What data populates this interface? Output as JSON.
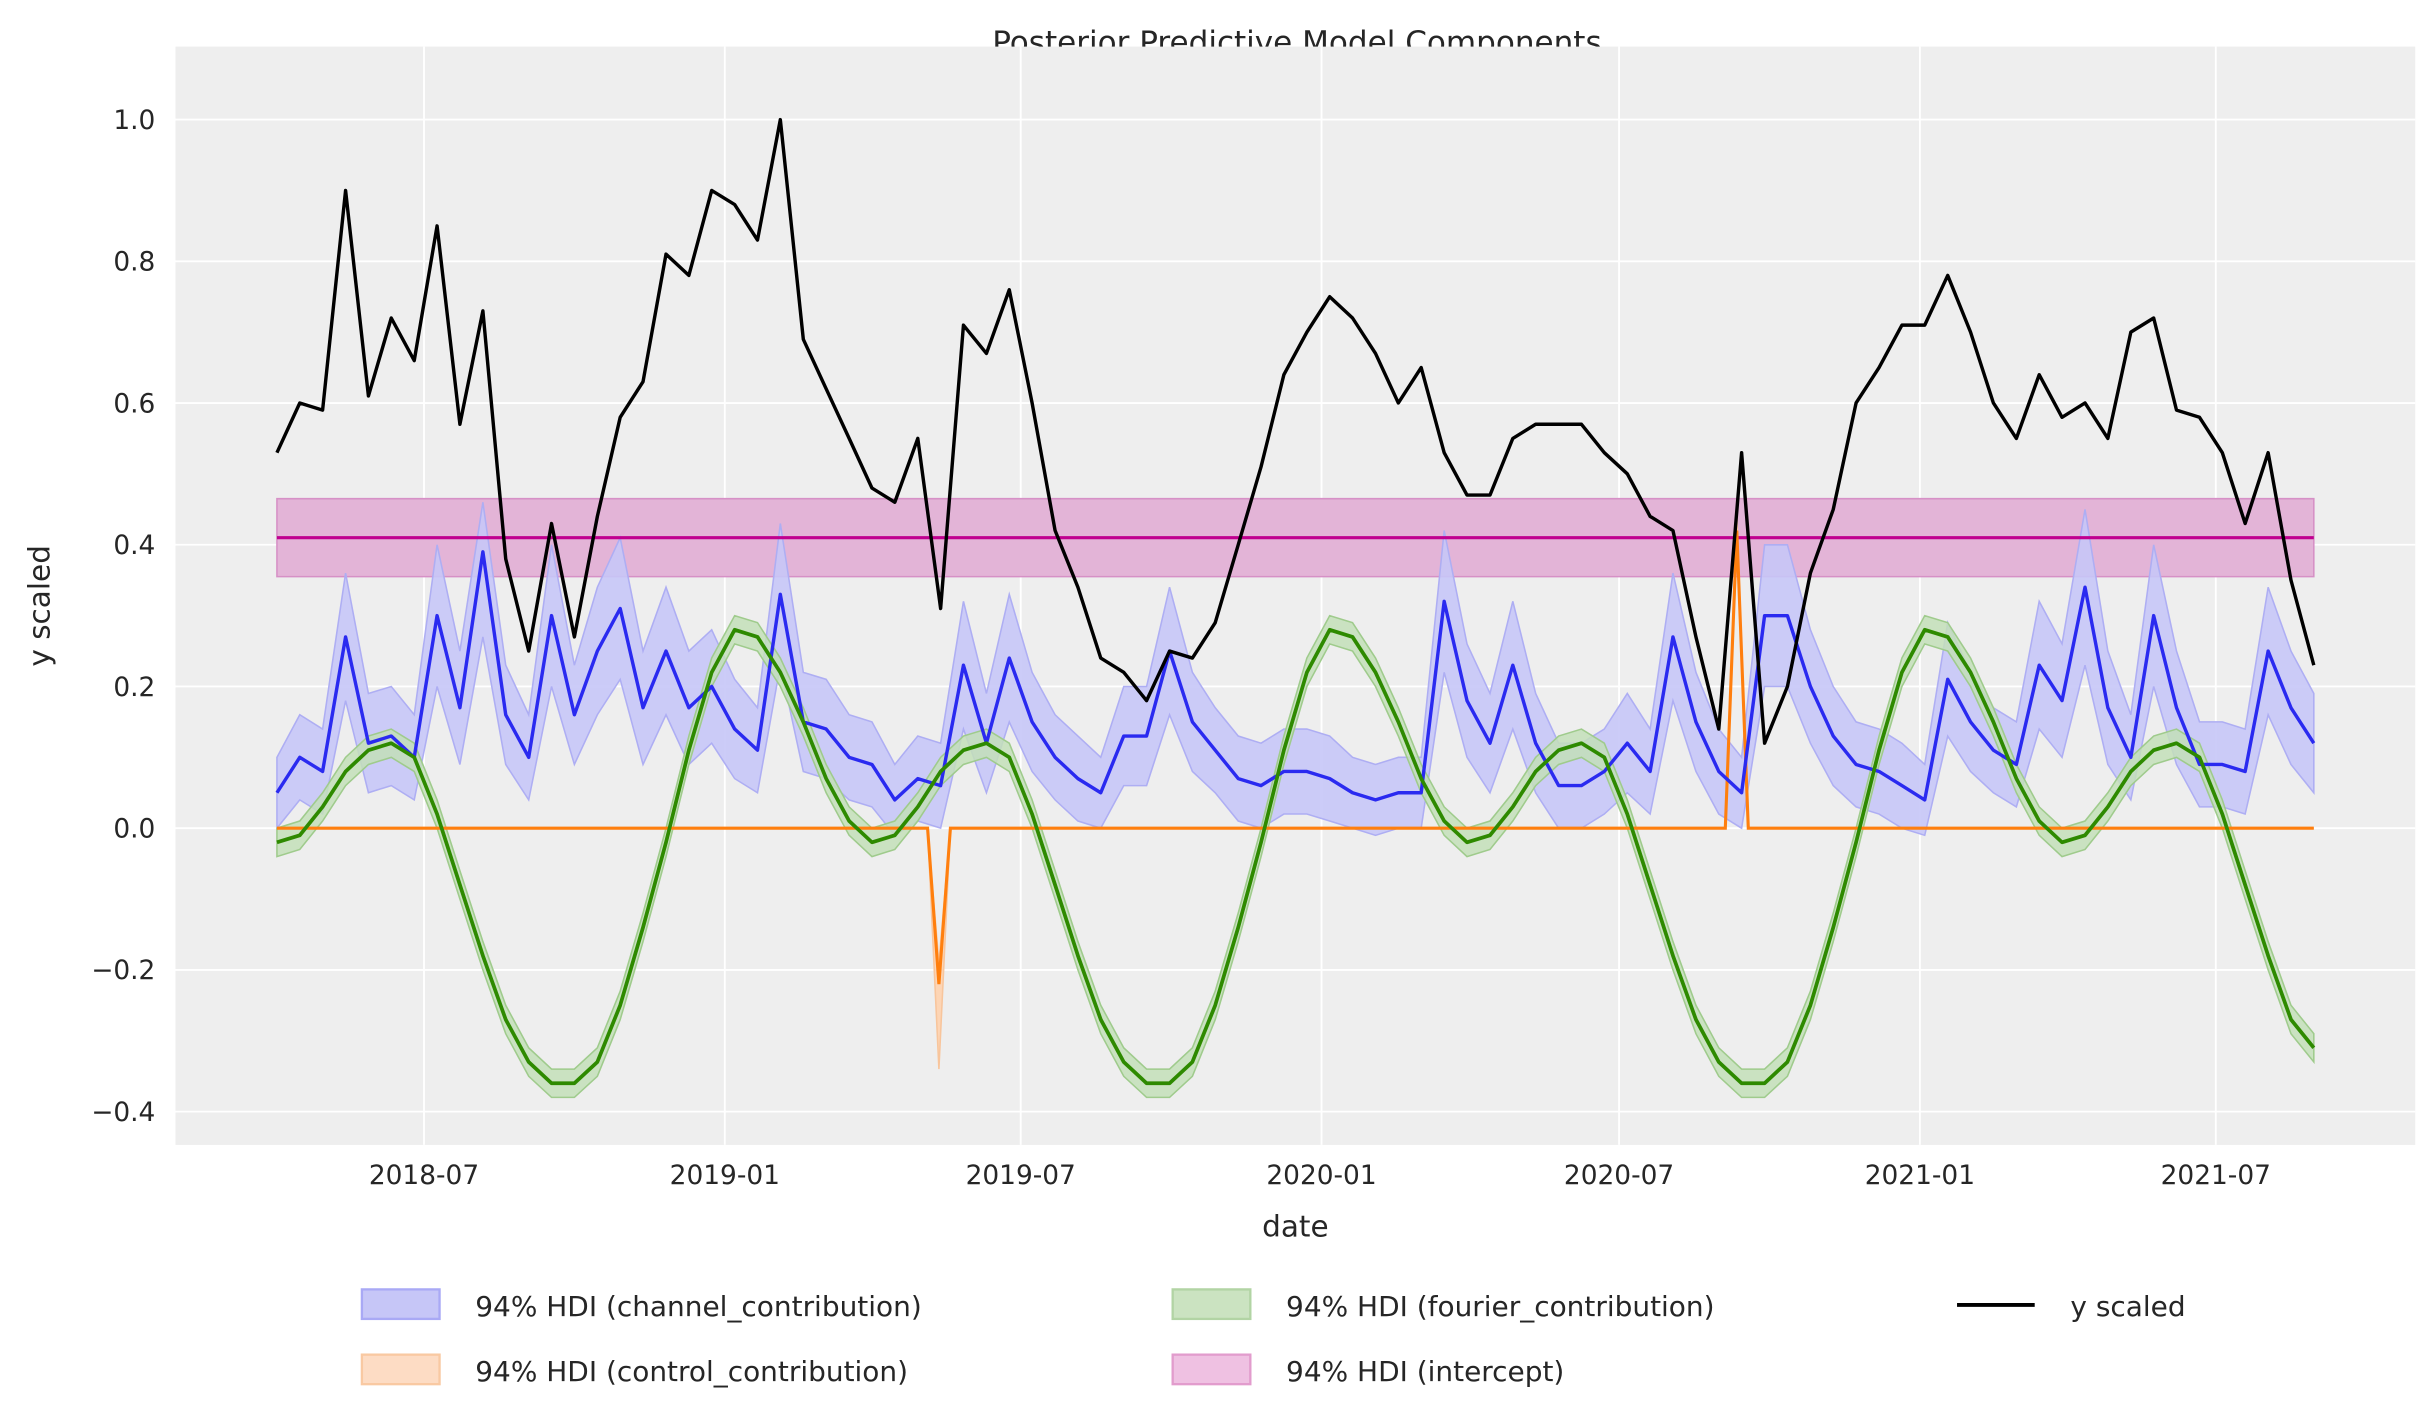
{
  "chart_data": {
    "type": "line",
    "title": "Posterior Predictive Model Components",
    "xlabel": "date",
    "ylabel": "y scaled",
    "xlim": [
      "2018-01-30",
      "2021-10-31"
    ],
    "ylim": [
      -0.447,
      1.103
    ],
    "x_ticks": [
      "2018-07",
      "2019-01",
      "2019-07",
      "2020-01",
      "2020-07",
      "2021-01",
      "2021-07"
    ],
    "x_tick_dates": [
      "2018-07-01",
      "2019-01-01",
      "2019-07-01",
      "2020-01-01",
      "2020-07-01",
      "2021-01-01",
      "2021-07-01"
    ],
    "y_ticks": [
      -0.4,
      -0.2,
      0.0,
      0.2,
      0.4,
      0.6,
      0.8,
      1.0
    ],
    "y_tick_labels": [
      "−0.4",
      "−0.2",
      "0.0",
      "0.2",
      "0.4",
      "0.6",
      "0.8",
      "1.0"
    ],
    "grid": true,
    "background": "#eeeeee",
    "legend_placement": "bottom-center",
    "x": [
      "2018-04-02",
      "2018-04-16",
      "2018-04-30",
      "2018-05-14",
      "2018-05-28",
      "2018-06-11",
      "2018-06-25",
      "2018-07-09",
      "2018-07-23",
      "2018-08-06",
      "2018-08-20",
      "2018-09-03",
      "2018-09-17",
      "2018-10-01",
      "2018-10-15",
      "2018-10-29",
      "2018-11-12",
      "2018-11-26",
      "2018-12-10",
      "2018-12-24",
      "2019-01-07",
      "2019-01-21",
      "2019-02-04",
      "2019-02-18",
      "2019-03-04",
      "2019-03-18",
      "2019-04-01",
      "2019-04-15",
      "2019-04-29",
      "2019-05-13",
      "2019-05-27",
      "2019-06-10",
      "2019-06-24",
      "2019-07-08",
      "2019-07-22",
      "2019-08-05",
      "2019-08-19",
      "2019-09-02",
      "2019-09-16",
      "2019-09-30",
      "2019-10-14",
      "2019-10-28",
      "2019-11-11",
      "2019-11-25",
      "2019-12-09",
      "2019-12-23",
      "2020-01-06",
      "2020-01-20",
      "2020-02-03",
      "2020-02-17",
      "2020-03-02",
      "2020-03-16",
      "2020-03-30",
      "2020-04-13",
      "2020-04-27",
      "2020-05-11",
      "2020-05-25",
      "2020-06-08",
      "2020-06-22",
      "2020-07-06",
      "2020-07-20",
      "2020-08-03",
      "2020-08-17",
      "2020-08-31",
      "2020-09-14",
      "2020-09-28",
      "2020-10-12",
      "2020-10-26",
      "2020-11-09",
      "2020-11-23",
      "2020-12-07",
      "2020-12-21",
      "2021-01-04",
      "2021-01-18",
      "2021-02-01",
      "2021-02-15",
      "2021-03-01",
      "2021-03-15",
      "2021-03-29",
      "2021-04-12",
      "2021-04-26",
      "2021-05-10",
      "2021-05-24",
      "2021-06-07",
      "2021-06-21",
      "2021-07-05",
      "2021-07-19",
      "2021-08-02",
      "2021-08-16",
      "2021-08-30"
    ],
    "series": [
      {
        "name": "94% HDI (channel_contribution)",
        "kind": "band+line",
        "color": "#2a2af0",
        "band_color": "#c6c6f7",
        "mean": [
          0.05,
          0.1,
          0.08,
          0.27,
          0.12,
          0.13,
          0.1,
          0.3,
          0.17,
          0.39,
          0.16,
          0.1,
          0.3,
          0.16,
          0.25,
          0.31,
          0.17,
          0.25,
          0.17,
          0.2,
          0.14,
          0.11,
          0.33,
          0.15,
          0.14,
          0.1,
          0.09,
          0.04,
          0.07,
          0.06,
          0.23,
          0.12,
          0.24,
          0.15,
          0.1,
          0.07,
          0.05,
          0.13,
          0.13,
          0.25,
          0.15,
          0.11,
          0.07,
          0.06,
          0.08,
          0.08,
          0.07,
          0.05,
          0.04,
          0.05,
          0.05,
          0.32,
          0.18,
          0.12,
          0.23,
          0.12,
          0.06,
          0.06,
          0.08,
          0.12,
          0.08,
          0.27,
          0.15,
          0.08,
          0.05,
          0.3,
          0.3,
          0.2,
          0.13,
          0.09,
          0.08,
          0.06,
          0.04,
          0.21,
          0.15,
          0.11,
          0.09,
          0.23,
          0.18,
          0.34,
          0.17,
          0.1,
          0.3,
          0.17,
          0.09,
          0.09,
          0.08,
          0.25,
          0.17,
          0.12
        ],
        "hdi_lower": [
          0.0,
          0.04,
          0.02,
          0.18,
          0.05,
          0.06,
          0.04,
          0.2,
          0.09,
          0.27,
          0.09,
          0.04,
          0.2,
          0.09,
          0.16,
          0.21,
          0.09,
          0.16,
          0.09,
          0.12,
          0.07,
          0.05,
          0.23,
          0.08,
          0.07,
          0.04,
          0.03,
          -0.01,
          0.01,
          0.0,
          0.14,
          0.05,
          0.15,
          0.08,
          0.04,
          0.01,
          0.0,
          0.06,
          0.06,
          0.16,
          0.08,
          0.05,
          0.01,
          0.0,
          0.02,
          0.02,
          0.01,
          0.0,
          -0.01,
          0.0,
          0.0,
          0.22,
          0.1,
          0.05,
          0.14,
          0.05,
          0.0,
          0.0,
          0.02,
          0.05,
          0.02,
          0.18,
          0.08,
          0.02,
          0.0,
          0.2,
          0.2,
          0.12,
          0.06,
          0.03,
          0.02,
          0.0,
          -0.01,
          0.13,
          0.08,
          0.05,
          0.03,
          0.14,
          0.1,
          0.23,
          0.09,
          0.04,
          0.2,
          0.09,
          0.03,
          0.03,
          0.02,
          0.16,
          0.09,
          0.05
        ],
        "hdi_upper": [
          0.1,
          0.16,
          0.14,
          0.36,
          0.19,
          0.2,
          0.16,
          0.4,
          0.25,
          0.46,
          0.23,
          0.16,
          0.4,
          0.23,
          0.34,
          0.41,
          0.25,
          0.34,
          0.25,
          0.28,
          0.21,
          0.17,
          0.43,
          0.22,
          0.21,
          0.16,
          0.15,
          0.09,
          0.13,
          0.12,
          0.32,
          0.19,
          0.33,
          0.22,
          0.16,
          0.13,
          0.1,
          0.2,
          0.2,
          0.34,
          0.22,
          0.17,
          0.13,
          0.12,
          0.14,
          0.14,
          0.13,
          0.1,
          0.09,
          0.1,
          0.1,
          0.42,
          0.26,
          0.19,
          0.32,
          0.19,
          0.12,
          0.12,
          0.14,
          0.19,
          0.14,
          0.36,
          0.22,
          0.14,
          0.1,
          0.4,
          0.4,
          0.28,
          0.2,
          0.15,
          0.14,
          0.12,
          0.09,
          0.29,
          0.22,
          0.17,
          0.15,
          0.32,
          0.26,
          0.45,
          0.25,
          0.16,
          0.4,
          0.25,
          0.15,
          0.15,
          0.14,
          0.34,
          0.25,
          0.19
        ]
      },
      {
        "name": "94% HDI (fourier_contribution)",
        "kind": "band+line",
        "color": "#2e8a00",
        "band_color": "#c3dfb8",
        "mean": [
          -0.02,
          -0.01,
          0.03,
          0.08,
          0.11,
          0.12,
          0.1,
          0.02,
          -0.08,
          -0.18,
          -0.27,
          -0.33,
          -0.36,
          -0.36,
          -0.33,
          -0.25,
          -0.14,
          -0.02,
          0.11,
          0.22,
          0.28,
          0.27,
          0.22,
          0.15,
          0.07,
          0.01,
          -0.02,
          -0.01,
          0.03,
          0.08,
          0.11,
          0.12,
          0.1,
          0.02,
          -0.08,
          -0.18,
          -0.27,
          -0.33,
          -0.36,
          -0.36,
          -0.33,
          -0.25,
          -0.14,
          -0.02,
          0.11,
          0.22,
          0.28,
          0.27,
          0.22,
          0.15,
          0.07,
          0.01,
          -0.02,
          -0.01,
          0.03,
          0.08,
          0.11,
          0.12,
          0.1,
          0.02,
          -0.08,
          -0.18,
          -0.27,
          -0.33,
          -0.36,
          -0.36,
          -0.33,
          -0.25,
          -0.14,
          -0.02,
          0.11,
          0.22,
          0.28,
          0.27,
          0.22,
          0.15,
          0.07,
          0.01,
          -0.02,
          -0.01,
          0.03,
          0.08,
          0.11,
          0.12,
          0.1,
          0.02,
          -0.08,
          -0.18,
          -0.27,
          -0.31
        ],
        "hdi_lower": [
          -0.04,
          -0.03,
          0.01,
          0.06,
          0.09,
          0.1,
          0.08,
          0.0,
          -0.1,
          -0.2,
          -0.29,
          -0.35,
          -0.38,
          -0.38,
          -0.35,
          -0.27,
          -0.16,
          -0.04,
          0.09,
          0.2,
          0.26,
          0.25,
          0.2,
          0.13,
          0.05,
          -0.01,
          -0.04,
          -0.03,
          0.01,
          0.06,
          0.09,
          0.1,
          0.08,
          0.0,
          -0.1,
          -0.2,
          -0.29,
          -0.35,
          -0.38,
          -0.38,
          -0.35,
          -0.27,
          -0.16,
          -0.04,
          0.09,
          0.2,
          0.26,
          0.25,
          0.2,
          0.13,
          0.05,
          -0.01,
          -0.04,
          -0.03,
          0.01,
          0.06,
          0.09,
          0.1,
          0.08,
          0.0,
          -0.1,
          -0.2,
          -0.29,
          -0.35,
          -0.38,
          -0.38,
          -0.35,
          -0.27,
          -0.16,
          -0.04,
          0.09,
          0.2,
          0.26,
          0.25,
          0.2,
          0.13,
          0.05,
          -0.01,
          -0.04,
          -0.03,
          0.01,
          0.06,
          0.09,
          0.1,
          0.08,
          0.0,
          -0.1,
          -0.2,
          -0.29,
          -0.33
        ],
        "hdi_upper": [
          0.0,
          0.01,
          0.05,
          0.1,
          0.13,
          0.14,
          0.12,
          0.04,
          -0.06,
          -0.16,
          -0.25,
          -0.31,
          -0.34,
          -0.34,
          -0.31,
          -0.23,
          -0.12,
          0.0,
          0.13,
          0.24,
          0.3,
          0.29,
          0.24,
          0.17,
          0.09,
          0.03,
          0.0,
          0.01,
          0.05,
          0.1,
          0.13,
          0.14,
          0.12,
          0.04,
          -0.06,
          -0.16,
          -0.25,
          -0.31,
          -0.34,
          -0.34,
          -0.31,
          -0.23,
          -0.12,
          0.0,
          0.13,
          0.24,
          0.3,
          0.29,
          0.24,
          0.17,
          0.09,
          0.03,
          0.0,
          0.01,
          0.05,
          0.1,
          0.13,
          0.14,
          0.12,
          0.04,
          -0.06,
          -0.16,
          -0.25,
          -0.31,
          -0.34,
          -0.34,
          -0.31,
          -0.23,
          -0.12,
          0.0,
          0.13,
          0.24,
          0.3,
          0.29,
          0.24,
          0.17,
          0.09,
          0.03,
          0.0,
          0.01,
          0.05,
          0.1,
          0.13,
          0.14,
          0.12,
          0.04,
          -0.06,
          -0.16,
          -0.25,
          -0.29
        ]
      },
      {
        "name": "y scaled",
        "kind": "line",
        "color": "#000000",
        "values": [
          0.53,
          0.6,
          0.59,
          0.9,
          0.61,
          0.72,
          0.66,
          0.85,
          0.57,
          0.73,
          0.38,
          0.25,
          0.43,
          0.27,
          0.44,
          0.58,
          0.63,
          0.81,
          0.78,
          0.9,
          0.88,
          0.83,
          1.0,
          0.69,
          0.62,
          0.55,
          0.48,
          0.46,
          0.55,
          0.31,
          0.71,
          0.67,
          0.76,
          0.6,
          0.42,
          0.34,
          0.24,
          0.22,
          0.18,
          0.25,
          0.24,
          0.29,
          0.4,
          0.51,
          0.64,
          0.7,
          0.75,
          0.72,
          0.67,
          0.6,
          0.65,
          0.53,
          0.47,
          0.47,
          0.55,
          0.57,
          0.57,
          0.57,
          0.53,
          0.5,
          0.44,
          0.42,
          0.27,
          0.14,
          0.53,
          0.12,
          0.2,
          0.36,
          0.45,
          0.6,
          0.65,
          0.71,
          0.71,
          0.78,
          0.7,
          0.6,
          0.55,
          0.64,
          0.58,
          0.6,
          0.55,
          0.7,
          0.72,
          0.59,
          0.58,
          0.53,
          0.43,
          0.53,
          0.35,
          0.23
        ]
      }
    ],
    "control": {
      "name": "94% HDI (control_contribution)",
      "color": "#ff7f0e",
      "band_color": "#fdd5b5",
      "x": [
        "2018-04-02",
        "2019-05-05",
        "2019-05-12",
        "2019-05-19",
        "2020-09-04",
        "2020-09-11",
        "2020-09-18",
        "2021-08-30"
      ],
      "mean": [
        0,
        0,
        -0.22,
        0,
        0,
        0.42,
        0,
        0
      ],
      "hdi_lower": [
        0,
        0,
        -0.34,
        0,
        0,
        0.4,
        0,
        0
      ],
      "hdi_upper": [
        0,
        0,
        -0.19,
        0,
        0,
        0.44,
        0,
        0
      ]
    },
    "intercept": {
      "name": "94% HDI (intercept)",
      "color": "#c0008f",
      "band_color": "#e2b0d5",
      "x": [
        "2018-04-02",
        "2021-08-30"
      ],
      "mean": 0.41,
      "hdi_lower": 0.355,
      "hdi_upper": 0.465
    },
    "legend": [
      {
        "label": "94% HDI (channel_contribution)",
        "kind": "patch",
        "color": "#c6c6f7",
        "edge": "#a9a9f5"
      },
      {
        "label": "94% HDI (control_contribution)",
        "kind": "patch",
        "color": "#fddcc4",
        "edge": "#f9c9a2"
      },
      {
        "label": "94% HDI (fourier_contribution)",
        "kind": "patch",
        "color": "#cbe3c1",
        "edge": "#b2d4a4"
      },
      {
        "label": "94% HDI (intercept)",
        "kind": "patch",
        "color": "#efc1e2",
        "edge": "#e29ccd"
      },
      {
        "label": "y scaled",
        "kind": "line",
        "color": "#000000"
      }
    ]
  }
}
